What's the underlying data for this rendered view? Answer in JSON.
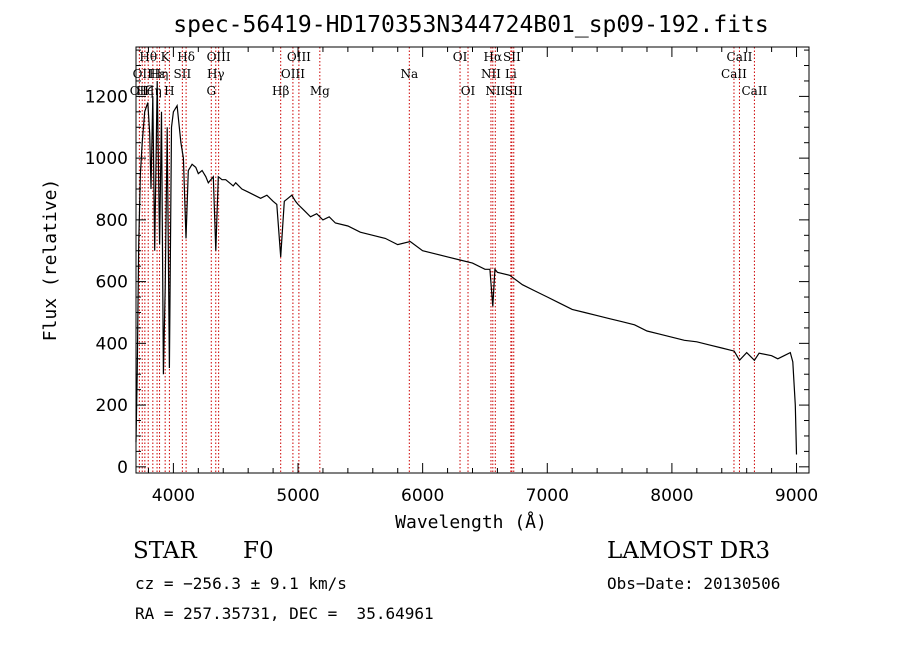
{
  "colors": {
    "spectrum": "#000000",
    "line_marker": "#cc0000",
    "frame": "#000000"
  },
  "chart_data": {
    "type": "line",
    "title": "spec-56419-HD170353N344724B01_sp09-192.fits",
    "xlabel": "Wavelength (Å)",
    "ylabel": "Flux (relative)",
    "xlim": [
      3700,
      9100
    ],
    "ylim": [
      -20,
      1360
    ],
    "xticks": [
      4000,
      5000,
      6000,
      7000,
      8000,
      9000
    ],
    "yticks": [
      0,
      200,
      400,
      600,
      800,
      1000,
      1200
    ],
    "series": [
      {
        "name": "flux",
        "x": [
          3700,
          3710,
          3722,
          3735,
          3750,
          3770,
          3795,
          3810,
          3820,
          3835,
          3850,
          3870,
          3889,
          3905,
          3920,
          3934,
          3950,
          3968,
          3985,
          4000,
          4030,
          4060,
          4080,
          4101,
          4120,
          4150,
          4180,
          4200,
          4230,
          4260,
          4280,
          4300,
          4320,
          4340,
          4360,
          4390,
          4420,
          4450,
          4480,
          4500,
          4550,
          4600,
          4650,
          4700,
          4750,
          4800,
          4830,
          4861,
          4890,
          4920,
          4950,
          4980,
          5000,
          5050,
          5100,
          5150,
          5200,
          5250,
          5300,
          5400,
          5500,
          5600,
          5700,
          5800,
          5900,
          6000,
          6100,
          6200,
          6300,
          6400,
          6500,
          6540,
          6563,
          6580,
          6600,
          6700,
          6800,
          6900,
          7000,
          7100,
          7200,
          7300,
          7400,
          7500,
          7600,
          7700,
          7800,
          7900,
          8000,
          8100,
          8200,
          8300,
          8400,
          8500,
          8542,
          8600,
          8662,
          8700,
          8800,
          8850,
          8900,
          8950,
          8970,
          8990,
          9000
        ],
        "y": [
          80,
          300,
          720,
          950,
          1050,
          1150,
          1180,
          1080,
          900,
          1200,
          700,
          1250,
          720,
          1150,
          300,
          580,
          1100,
          320,
          1100,
          1150,
          1170,
          1050,
          1000,
          740,
          960,
          980,
          970,
          950,
          960,
          940,
          920,
          930,
          940,
          700,
          940,
          930,
          930,
          920,
          910,
          920,
          900,
          890,
          880,
          870,
          880,
          860,
          850,
          680,
          860,
          870,
          880,
          860,
          850,
          830,
          810,
          820,
          800,
          810,
          790,
          780,
          760,
          750,
          740,
          720,
          730,
          700,
          690,
          680,
          670,
          660,
          640,
          640,
          520,
          640,
          630,
          620,
          590,
          570,
          550,
          530,
          510,
          500,
          490,
          480,
          470,
          460,
          440,
          430,
          420,
          410,
          405,
          395,
          385,
          375,
          345,
          370,
          345,
          368,
          360,
          350,
          360,
          370,
          340,
          200,
          40
        ]
      }
    ],
    "line_markers": [
      {
        "wavelength": 3727,
        "label": "OII",
        "row": 3
      },
      {
        "wavelength": 3750,
        "label": "OII",
        "row": 2
      },
      {
        "wavelength": 3771,
        "label": "Hζ",
        "row": 3
      },
      {
        "wavelength": 3798,
        "label": "Hθ",
        "row": 1
      },
      {
        "wavelength": 3835,
        "label": "Hη",
        "row": 3
      },
      {
        "wavelength": 3869,
        "label": "Hε",
        "row": 2
      },
      {
        "wavelength": 3889,
        "label": "Hη",
        "row": 2
      },
      {
        "wavelength": 3934,
        "label": "K",
        "row": 1
      },
      {
        "wavelength": 3968,
        "label": "H",
        "row": 3
      },
      {
        "wavelength": 4072,
        "label": "SII",
        "row": 2
      },
      {
        "wavelength": 4102,
        "label": "Hδ",
        "row": 1
      },
      {
        "wavelength": 4304,
        "label": "G",
        "row": 3
      },
      {
        "wavelength": 4340,
        "label": "Hγ",
        "row": 2
      },
      {
        "wavelength": 4363,
        "label": "OIII",
        "row": 1
      },
      {
        "wavelength": 4861,
        "label": "Hβ",
        "row": 3
      },
      {
        "wavelength": 4959,
        "label": "OIII",
        "row": 2
      },
      {
        "wavelength": 5007,
        "label": "OIII",
        "row": 1
      },
      {
        "wavelength": 5175,
        "label": "Mg",
        "row": 3
      },
      {
        "wavelength": 5893,
        "label": "Na",
        "row": 2
      },
      {
        "wavelength": 6300,
        "label": "OI",
        "row": 1
      },
      {
        "wavelength": 6364,
        "label": "OI",
        "row": 3
      },
      {
        "wavelength": 6548,
        "label": "NII",
        "row": 2
      },
      {
        "wavelength": 6563,
        "label": "Hα",
        "row": 1
      },
      {
        "wavelength": 6583,
        "label": "NII",
        "row": 3
      },
      {
        "wavelength": 6708,
        "label": "Li",
        "row": 2
      },
      {
        "wavelength": 6716,
        "label": "SII",
        "row": 1
      },
      {
        "wavelength": 6731,
        "label": "SII",
        "row": 3
      },
      {
        "wavelength": 8498,
        "label": "CaII",
        "row": 2
      },
      {
        "wavelength": 8542,
        "label": "CaII",
        "row": 1
      },
      {
        "wavelength": 8662,
        "label": "CaII",
        "row": 3
      }
    ]
  },
  "info": {
    "class_label": "STAR",
    "subclass": "F0",
    "survey": "LAMOST DR3",
    "cz": "cz = −256.3 ± 9.1 km/s",
    "obs_date": "Obs−Date: 20130506",
    "coords": "RA = 257.35731, DEC =  35.64961"
  }
}
